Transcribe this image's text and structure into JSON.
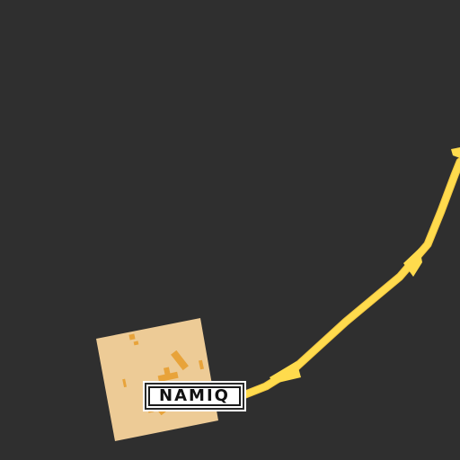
{
  "map": {
    "background_color": "#2f2f2f",
    "road_color": "#ffdb4d",
    "road_casing_color": "#f2c640",
    "settlement_area_color": "#edcb96",
    "building_color": "#e8a33a",
    "settlement_label": "NAMIQ",
    "label_style": "boxed-shield"
  }
}
